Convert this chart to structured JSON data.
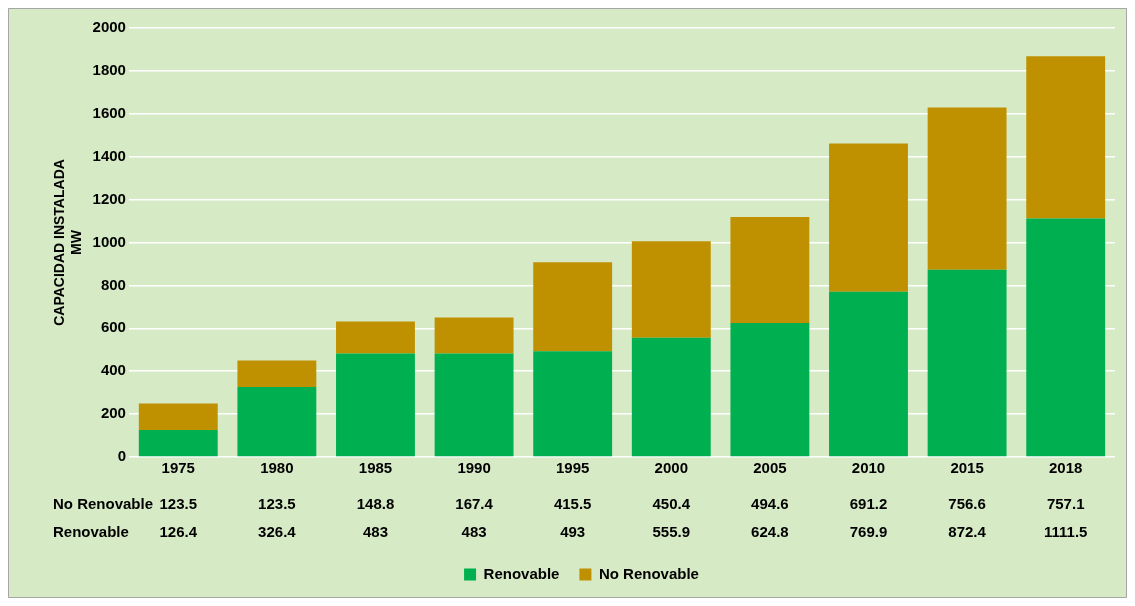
{
  "chart_data": {
    "type": "bar",
    "stacked": true,
    "ylabel": "CAPACIDAD INSTALADA\nMW",
    "categories": [
      "1975",
      "1980",
      "1985",
      "1990",
      "1995",
      "2000",
      "2005",
      "2010",
      "2015",
      "2018"
    ],
    "series": [
      {
        "name": "Renovable",
        "color": "#00b050",
        "values": [
          126.4,
          326.4,
          483,
          483,
          493,
          555.9,
          624.8,
          769.9,
          872.4,
          1111.5
        ]
      },
      {
        "name": "No Renovable",
        "color": "#bf9000",
        "values": [
          123.5,
          123.5,
          148.8,
          167.4,
          415.5,
          450.4,
          494.6,
          691.2,
          756.6,
          757.1
        ]
      }
    ],
    "ylim": [
      0,
      2000
    ],
    "yticks": [
      0,
      200,
      400,
      600,
      800,
      1000,
      1200,
      1400,
      1600,
      1800,
      2000
    ],
    "grid": "y",
    "legend": "bottom",
    "data_labels": true
  }
}
